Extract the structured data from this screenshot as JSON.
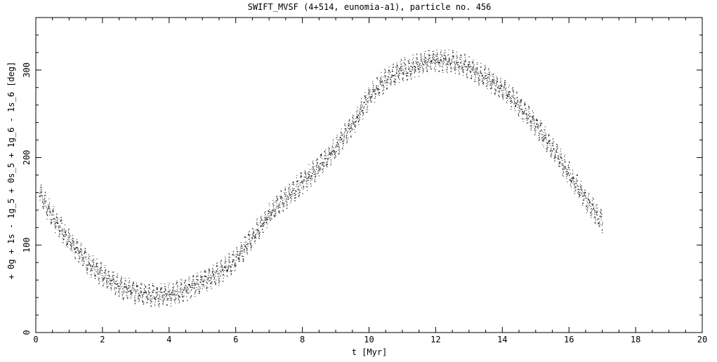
{
  "chart_data": {
    "type": "scatter",
    "title": "SWIFT_MVSF (4+514, eunomia-a1), particle no. 456",
    "xlabel": "t [Myr]",
    "ylabel": "+ 0g + 1s - 1g_5 + 0s_5 + 1g_6 - 1s_6 [deg]",
    "xlim": [
      0,
      20
    ],
    "ylim": [
      0,
      360
    ],
    "x_ticks": [
      0,
      2,
      4,
      6,
      8,
      10,
      12,
      14,
      16,
      18,
      20
    ],
    "x_tick_labels": [
      "0",
      "2",
      "4",
      "6",
      "8",
      "10",
      "12",
      "14",
      "16",
      "18",
      "20"
    ],
    "y_ticks": [
      0,
      100,
      200,
      300
    ],
    "y_tick_labels": [
      "0",
      "100",
      "200",
      "300"
    ],
    "grid": false,
    "marker_color": "#000000",
    "series": [
      {
        "x": [
          0.1,
          0.5,
          1.0,
          1.5,
          2.0,
          2.5,
          3.0,
          3.5,
          4.0,
          4.5,
          5.0,
          5.5,
          6.0,
          6.5,
          7.0,
          7.5,
          8.0,
          8.5,
          9.0,
          9.5,
          10.0,
          10.5,
          11.0,
          11.5,
          12.0,
          12.5,
          13.0,
          13.5,
          14.0,
          14.5,
          15.0,
          15.5,
          16.0,
          16.5,
          17.0
        ],
        "y": [
          160,
          132,
          105,
          82,
          66,
          53,
          46,
          43,
          44,
          50,
          58,
          68,
          84,
          110,
          135,
          155,
          172,
          190,
          212,
          238,
          270,
          290,
          300,
          307,
          312,
          310,
          303,
          292,
          278,
          260,
          237,
          210,
          182,
          152,
          126
        ]
      }
    ]
  }
}
